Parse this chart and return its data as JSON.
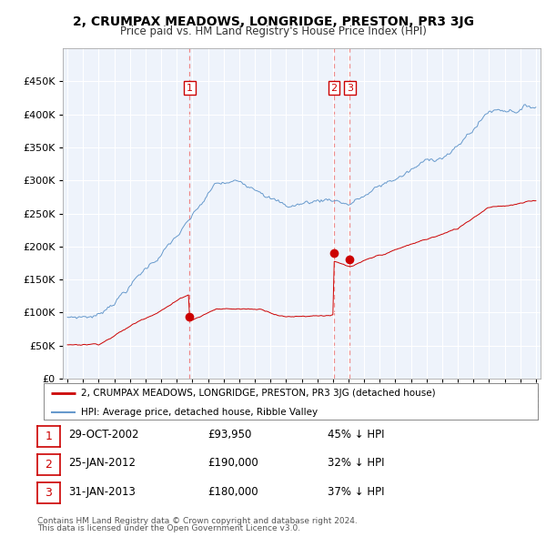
{
  "title": "2, CRUMPAX MEADOWS, LONGRIDGE, PRESTON, PR3 3JG",
  "subtitle": "Price paid vs. HM Land Registry's House Price Index (HPI)",
  "legend_label_red": "2, CRUMPAX MEADOWS, LONGRIDGE, PRESTON, PR3 3JG (detached house)",
  "legend_label_blue": "HPI: Average price, detached house, Ribble Valley",
  "footer1": "Contains HM Land Registry data © Crown copyright and database right 2024.",
  "footer2": "This data is licensed under the Open Government Licence v3.0.",
  "transactions": [
    {
      "num": 1,
      "date": "29-OCT-2002",
      "price": "£93,950",
      "pct": "45% ↓ HPI",
      "year": 2002.83
    },
    {
      "num": 2,
      "date": "25-JAN-2012",
      "price": "£190,000",
      "pct": "32% ↓ HPI",
      "year": 2012.07
    },
    {
      "num": 3,
      "date": "31-JAN-2013",
      "price": "£180,000",
      "pct": "37% ↓ HPI",
      "year": 2013.08
    }
  ],
  "transaction_prices": [
    93950,
    190000,
    180000
  ],
  "ylim": [
    0,
    500000
  ],
  "yticks": [
    0,
    50000,
    100000,
    150000,
    200000,
    250000,
    300000,
    350000,
    400000,
    450000
  ],
  "xlim_left": 1994.7,
  "xlim_right": 2025.3,
  "color_red": "#cc0000",
  "color_blue": "#6699cc",
  "color_vline": "#ee8888",
  "background_plot": "#eef3fb",
  "background_fig": "#ffffff",
  "grid_color": "#ffffff"
}
